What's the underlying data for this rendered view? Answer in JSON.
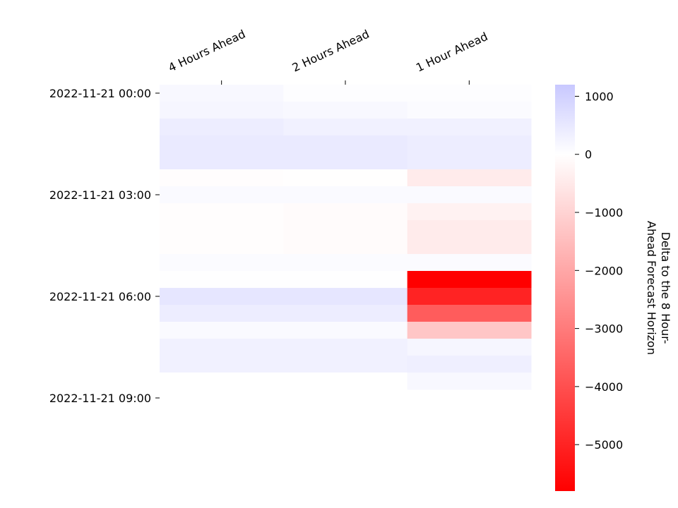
{
  "chart_data": {
    "type": "heatmap",
    "title": "",
    "columns": [
      "4 Hours Ahead",
      "2 Hours Ahead",
      "1 Hour Ahead"
    ],
    "row_tick_labels": [
      "2022-11-21 00:00",
      "2022-11-21 03:00",
      "2022-11-21 06:00",
      "2022-11-21 09:00"
    ],
    "row_tick_every": 6,
    "row_count": 24,
    "values": [
      [
        150,
        50,
        50
      ],
      [
        200,
        150,
        80
      ],
      [
        400,
        300,
        300
      ],
      [
        450,
        450,
        400
      ],
      [
        450,
        450,
        400
      ],
      [
        -50,
        -30,
        -450
      ],
      [
        100,
        100,
        100
      ],
      [
        -50,
        -100,
        -300
      ],
      [
        -50,
        -100,
        -450
      ],
      [
        -50,
        -100,
        -450
      ],
      [
        80,
        80,
        80
      ],
      [
        30,
        30,
        -5800
      ],
      [
        550,
        550,
        -5000
      ],
      [
        400,
        400,
        -3700
      ],
      [
        100,
        100,
        -1300
      ],
      [
        300,
        300,
        200
      ],
      [
        300,
        300,
        350
      ],
      [
        10,
        10,
        150
      ],
      [
        10,
        10,
        null
      ],
      [
        10,
        10,
        null
      ],
      [
        10,
        null,
        null
      ],
      [
        10,
        null,
        null
      ],
      [
        10,
        null,
        null
      ],
      [
        10,
        null,
        null
      ]
    ],
    "colorbar": {
      "label": "Delta to the 8 Hour-\nAhead Forecast Horizon",
      "vmin": -5800,
      "vmax": 1200,
      "ticks": [
        1000,
        0,
        -1000,
        -2000,
        -3000,
        -4000,
        -5000
      ],
      "tick_labels": [
        "1000",
        "0",
        "−1000",
        "−2000",
        "−3000",
        "−4000",
        "−5000"
      ],
      "colors": {
        "negative": "#ff0000",
        "zero": "#ffffff",
        "positive": "#c8c8ff"
      }
    }
  }
}
